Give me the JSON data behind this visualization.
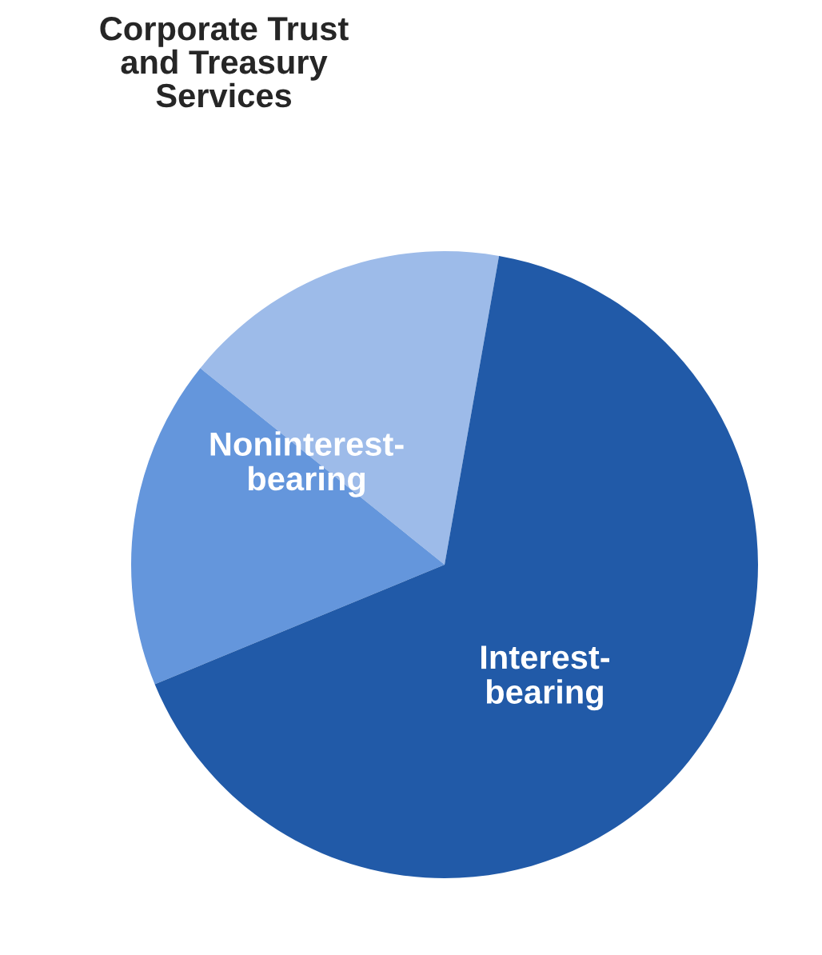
{
  "chart_data": {
    "type": "pie",
    "title": "Corporate Trust\nand Treasury\nServices",
    "categories": [
      null,
      "Noninterest-\nbearing",
      "Interest-\nbearing"
    ],
    "values": [
      17,
      17,
      66
    ],
    "colors": [
      "#9dbbe9",
      "#6496dc",
      "#215aa8"
    ]
  }
}
